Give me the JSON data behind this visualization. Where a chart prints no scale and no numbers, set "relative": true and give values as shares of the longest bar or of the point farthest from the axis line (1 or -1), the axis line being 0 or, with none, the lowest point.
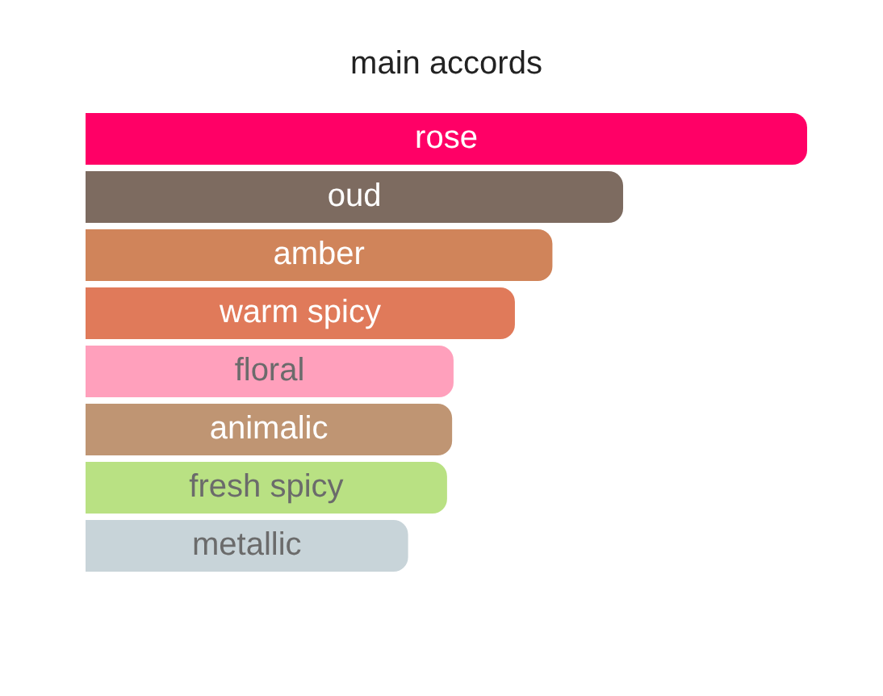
{
  "chart_data": {
    "type": "bar",
    "title": "main accords",
    "orientation": "horizontal",
    "relative": true,
    "categories": [
      "rose",
      "oud",
      "amber",
      "warm spicy",
      "floral",
      "animalic",
      "fresh spicy",
      "metallic"
    ],
    "values": [
      1,
      0.745,
      0.647,
      0.595,
      0.51,
      0.508,
      0.501,
      0.447
    ],
    "colors": [
      "#ff0066",
      "#7d6b60",
      "#d0845a",
      "#e07a5a",
      "#ffa0bc",
      "#bf9573",
      "#b9e183",
      "#c8d4d9"
    ],
    "legend": false
  }
}
